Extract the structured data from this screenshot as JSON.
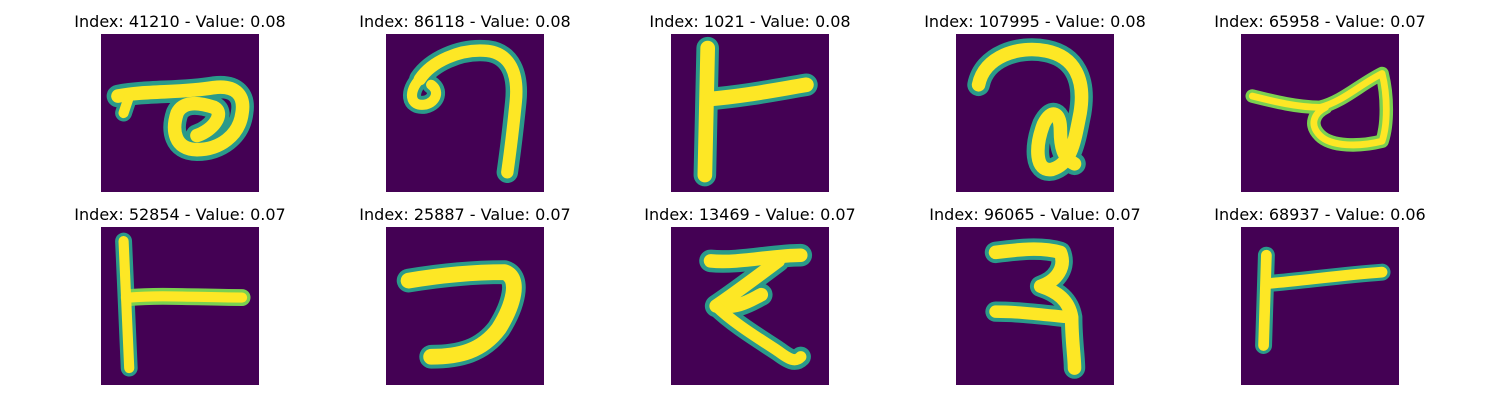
{
  "figure": {
    "colormap": {
      "background": "#440154",
      "stroke_halo": "#2a9a8a",
      "stroke_mid": "#7ad151",
      "stroke_core": "#fde725"
    },
    "panels": [
      {
        "title": "Index: 41210 - Value: 0.08",
        "glyph": "ligature-loop-right"
      },
      {
        "title": "Index: 86118 - Value: 0.08",
        "glyph": "hook-curl"
      },
      {
        "title": "Index: 1021 - Value: 0.08",
        "glyph": "vertical-bar-with-arm"
      },
      {
        "title": "Index: 107995 - Value: 0.08",
        "glyph": "spiral-loop"
      },
      {
        "title": "Index: 65958 - Value: 0.07",
        "glyph": "triangle-loop"
      },
      {
        "title": "Index: 52854 - Value: 0.07",
        "glyph": "vertical-bar-with-arm"
      },
      {
        "title": "Index: 25887 - Value: 0.07",
        "glyph": "hook-left"
      },
      {
        "title": "Index: 13469 - Value: 0.07",
        "glyph": "zigzag"
      },
      {
        "title": "Index: 96065 - Value: 0.07",
        "glyph": "double-hook"
      },
      {
        "title": "Index: 68937 - Value: 0.06",
        "glyph": "vertical-bar-with-arm"
      }
    ]
  }
}
